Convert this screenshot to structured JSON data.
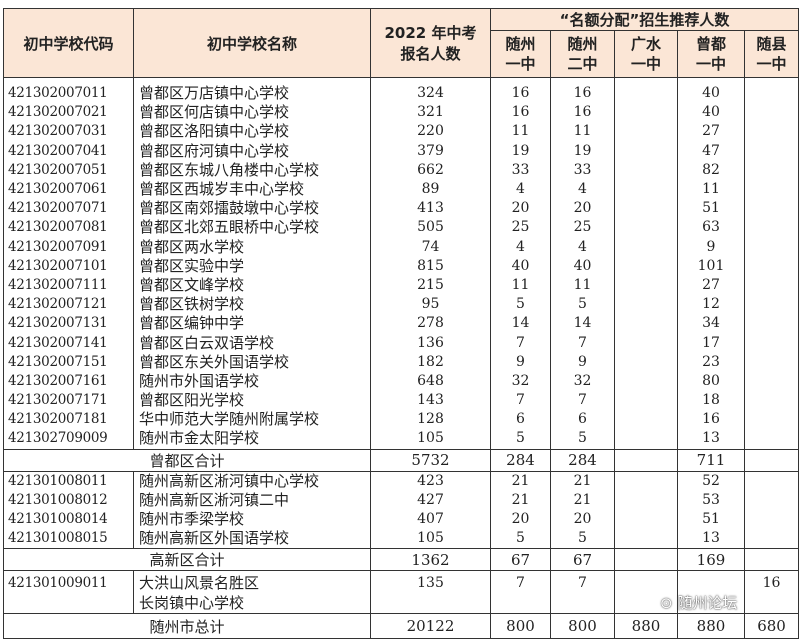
{
  "header": {
    "code": "初中学校代码",
    "name": "初中学校名称",
    "applicants": [
      "2022 年中考",
      "报名人数"
    ],
    "group": "“名额分配”招生推荐人数",
    "schools": [
      [
        "随州",
        "一中"
      ],
      [
        "随州",
        "二中"
      ],
      [
        "广水",
        "一中"
      ],
      [
        "曾都",
        "一中"
      ],
      [
        "随县",
        "一中"
      ]
    ]
  },
  "groups": [
    {
      "rows": [
        {
          "code": "421302007011",
          "name": "曾都区万店镇中心学校",
          "n": "324",
          "v": [
            "16",
            "16",
            "",
            "40",
            ""
          ]
        },
        {
          "code": "421302007021",
          "name": "曾都区何店镇中心学校",
          "n": "321",
          "v": [
            "16",
            "16",
            "",
            "40",
            ""
          ]
        },
        {
          "code": "421302007031",
          "name": "曾都区洛阳镇中心学校",
          "n": "220",
          "v": [
            "11",
            "11",
            "",
            "27",
            ""
          ]
        },
        {
          "code": "421302007041",
          "name": "曾都区府河镇中心学校",
          "n": "379",
          "v": [
            "19",
            "19",
            "",
            "47",
            ""
          ]
        },
        {
          "code": "421302007051",
          "name": "曾都区东城八角楼中心学校",
          "n": "662",
          "v": [
            "33",
            "33",
            "",
            "82",
            ""
          ]
        },
        {
          "code": "421302007061",
          "name": "曾都区西城岁丰中心学校",
          "n": "89",
          "v": [
            "4",
            "4",
            "",
            "11",
            ""
          ]
        },
        {
          "code": "421302007071",
          "name": "曾都区南郊擂鼓墩中心学校",
          "n": "413",
          "v": [
            "20",
            "20",
            "",
            "51",
            ""
          ]
        },
        {
          "code": "421302007081",
          "name": "曾都区北郊五眼桥中心学校",
          "n": "505",
          "v": [
            "25",
            "25",
            "",
            "63",
            ""
          ]
        },
        {
          "code": "421302007091",
          "name": "曾都区两水学校",
          "n": "74",
          "v": [
            "4",
            "4",
            "",
            "9",
            ""
          ]
        },
        {
          "code": "421302007101",
          "name": "曾都区实验中学",
          "n": "815",
          "v": [
            "40",
            "40",
            "",
            "101",
            ""
          ]
        },
        {
          "code": "421302007111",
          "name": "曾都区文峰学校",
          "n": "215",
          "v": [
            "11",
            "11",
            "",
            "27",
            ""
          ]
        },
        {
          "code": "421302007121",
          "name": "曾都区铁树学校",
          "n": "95",
          "v": [
            "5",
            "5",
            "",
            "12",
            ""
          ]
        },
        {
          "code": "421302007131",
          "name": "曾都区编钟中学",
          "n": "278",
          "v": [
            "14",
            "14",
            "",
            "34",
            ""
          ]
        },
        {
          "code": "421302007141",
          "name": "曾都区白云双语学校",
          "n": "136",
          "v": [
            "7",
            "7",
            "",
            "17",
            ""
          ]
        },
        {
          "code": "421302007151",
          "name": "曾都区东关外国语学校",
          "n": "182",
          "v": [
            "9",
            "9",
            "",
            "23",
            ""
          ]
        },
        {
          "code": "421302007161",
          "name": "随州市外国语学校",
          "n": "648",
          "v": [
            "32",
            "32",
            "",
            "80",
            ""
          ]
        },
        {
          "code": "421302007171",
          "name": "曾都区阳光学校",
          "n": "143",
          "v": [
            "7",
            "7",
            "",
            "18",
            ""
          ]
        },
        {
          "code": "421302007181",
          "name": "华中师范大学随州附属学校",
          "n": "128",
          "v": [
            "6",
            "6",
            "",
            "16",
            ""
          ]
        },
        {
          "code": "421302709009",
          "name": "随州市金太阳学校",
          "n": "105",
          "v": [
            "5",
            "5",
            "",
            "13",
            ""
          ]
        }
      ],
      "subtotal": {
        "label": "曾都区合计",
        "n": "5732",
        "v": [
          "284",
          "284",
          "",
          "711",
          ""
        ]
      }
    },
    {
      "rows": [
        {
          "code": "421301008011",
          "name": "随州高新区淅河镇中心学校",
          "n": "423",
          "v": [
            "21",
            "21",
            "",
            "52",
            ""
          ]
        },
        {
          "code": "421301008012",
          "name": "随州高新区淅河镇二中",
          "n": "427",
          "v": [
            "21",
            "21",
            "",
            "53",
            ""
          ]
        },
        {
          "code": "421301008014",
          "name": "随州市季梁学校",
          "n": "407",
          "v": [
            "20",
            "20",
            "",
            "51",
            ""
          ]
        },
        {
          "code": "421301008015",
          "name": "随州高新区外国语学校",
          "n": "105",
          "v": [
            "5",
            "5",
            "",
            "13",
            ""
          ]
        }
      ],
      "subtotal": {
        "label": "高新区合计",
        "n": "1362",
        "v": [
          "67",
          "67",
          "",
          "169",
          ""
        ]
      }
    },
    {
      "rows": [
        {
          "code": "421301009011",
          "name": "大洪山风景名胜区",
          "name2": "长岗镇中心学校",
          "n": "135",
          "v": [
            "7",
            "7",
            "",
            "",
            "16"
          ]
        }
      ]
    }
  ],
  "total": {
    "label": "随州市总计",
    "n": "20122",
    "v": [
      "800",
      "800",
      "880",
      "880",
      "680"
    ]
  },
  "watermark": "随州论坛"
}
